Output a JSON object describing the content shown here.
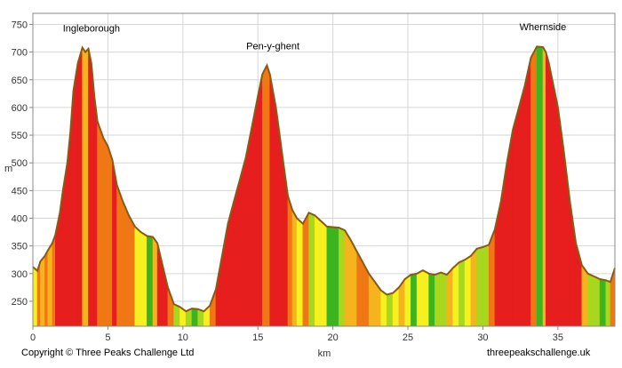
{
  "chart_data": {
    "type": "area",
    "title": "",
    "xlabel": "km",
    "ylabel": "m",
    "xlim": [
      0,
      38.8
    ],
    "ylim": [
      205,
      770
    ],
    "x_ticks": [
      0,
      5,
      10,
      15,
      20,
      25,
      30,
      35
    ],
    "y_ticks": [
      250,
      300,
      350,
      400,
      450,
      500,
      550,
      600,
      650,
      700,
      750
    ],
    "grid": true,
    "annotations": [
      {
        "text": "Ingleborough",
        "x": 3.9,
        "y": 708
      },
      {
        "text": "Pen-y-ghent",
        "x": 16.0,
        "y": 676
      },
      {
        "text": "Whernside",
        "x": 34.0,
        "y": 711
      }
    ],
    "fill_colors": {
      "flat": "#3cb41e",
      "gentle": "#a8d81e",
      "moderate": "#f5f01e",
      "steep": "#f5b41e",
      "very_steep": "#f07814",
      "extreme": "#e61e1e",
      "outline": "#8a5a14"
    },
    "series": [
      {
        "x": [
          0,
          0.3,
          0.5,
          0.8,
          1.0,
          1.3,
          1.5,
          1.8,
          2.0,
          2.3,
          2.5,
          2.7,
          3.0,
          3.3,
          3.5,
          3.7,
          3.9,
          4.1,
          4.3,
          4.5,
          4.7,
          5.0,
          5.3,
          5.6,
          6.0,
          6.4,
          6.8,
          7.2,
          7.6,
          8.0,
          8.3,
          8.6,
          9.0,
          9.4,
          9.8,
          10.2,
          10.6,
          11.0,
          11.4,
          11.8,
          12.2,
          12.6,
          13.0,
          13.4,
          13.8,
          14.2,
          14.6,
          15.0,
          15.3,
          15.6,
          15.8,
          16.0,
          16.2,
          16.4,
          16.6,
          16.8,
          17.0,
          17.3,
          17.6,
          18.0,
          18.4,
          18.8,
          19.2,
          19.6,
          20.0,
          20.4,
          20.8,
          21.2,
          21.6,
          22.0,
          22.4,
          22.8,
          23.2,
          23.6,
          24.0,
          24.4,
          24.8,
          25.2,
          25.6,
          26.0,
          26.4,
          26.8,
          27.2,
          27.6,
          28.0,
          28.4,
          28.8,
          29.2,
          29.6,
          30.0,
          30.4,
          30.8,
          31.2,
          31.6,
          32.0,
          32.4,
          32.8,
          33.2,
          33.6,
          34.0,
          34.2,
          34.4,
          34.7,
          35.0,
          35.4,
          35.8,
          36.2,
          36.6,
          37.0,
          37.4,
          37.8,
          38.2,
          38.5,
          38.8
        ],
        "values": [
          312,
          305,
          322,
          332,
          342,
          355,
          370,
          410,
          450,
          500,
          555,
          630,
          680,
          708,
          700,
          706,
          680,
          620,
          575,
          560,
          545,
          530,
          505,
          460,
          430,
          405,
          385,
          375,
          368,
          366,
          355,
          320,
          275,
          245,
          240,
          232,
          237,
          236,
          232,
          242,
          272,
          330,
          390,
          430,
          470,
          510,
          565,
          620,
          660,
          676,
          660,
          630,
          600,
          560,
          520,
          480,
          440,
          415,
          400,
          390,
          410,
          405,
          395,
          385,
          384,
          383,
          378,
          360,
          340,
          320,
          300,
          285,
          270,
          262,
          265,
          275,
          290,
          298,
          300,
          306,
          300,
          298,
          302,
          298,
          310,
          320,
          325,
          332,
          345,
          348,
          352,
          380,
          430,
          500,
          560,
          600,
          640,
          690,
          710,
          709,
          700,
          680,
          640,
          600,
          520,
          430,
          355,
          315,
          300,
          295,
          290,
          288,
          285,
          310
        ]
      }
    ]
  },
  "footer": {
    "copyright": "Copyright © Three Peaks Challenge Ltd",
    "website": "threepeakschallenge.uk"
  }
}
